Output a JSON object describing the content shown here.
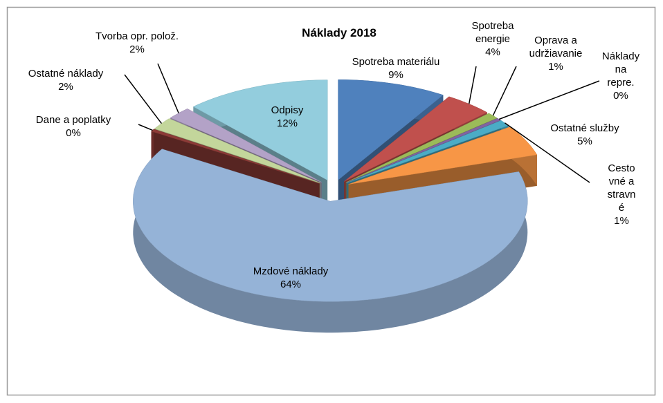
{
  "chart_data": {
    "type": "pie3d",
    "title": "Náklady 2018",
    "categories": [
      "Spotreba materiálu",
      "Spotreba energie",
      "Oprava a udržiavanie",
      "Náklady na repre.",
      "Cestovné a stravné",
      "Ostatné služby",
      "Mzdové náklady",
      "Dane a poplatky",
      "Ostatné náklady",
      "Tvorba opr. polož.",
      "Odpisy"
    ],
    "values": [
      9,
      4,
      1,
      0.4,
      1,
      5,
      64,
      0.4,
      2,
      2,
      12
    ],
    "value_labels": [
      "9%",
      "4%",
      "1%",
      "0%",
      "1%",
      "5%",
      "64%",
      "0%",
      "2%",
      "2%",
      "12%"
    ],
    "colors": [
      "#4f81bd",
      "#c0504d",
      "#9bbb59",
      "#8064a2",
      "#4bacc6",
      "#f79646",
      "#95b3d7",
      "#8c3b37",
      "#c3d69b",
      "#b3a2c7",
      "#93cddd"
    ]
  }
}
